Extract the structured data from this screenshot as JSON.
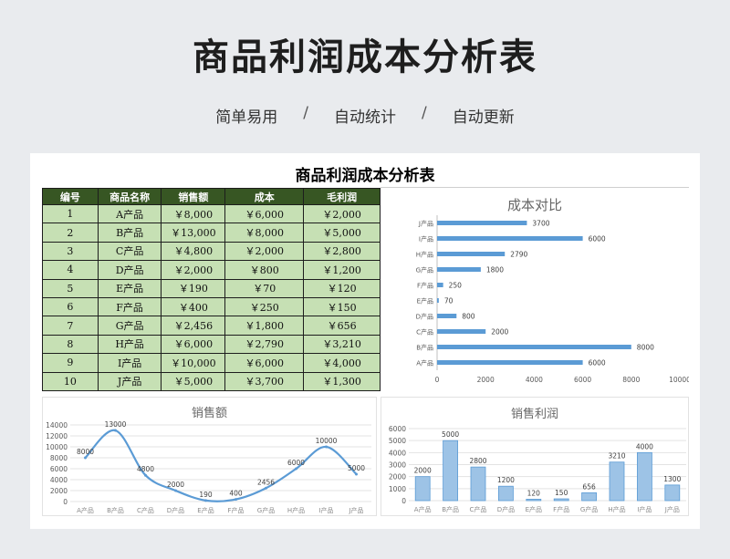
{
  "hero": {
    "title": "商品利润成本分析表",
    "subtitle": [
      "简单易用",
      "自动统计",
      "自动更新"
    ],
    "separator": "/"
  },
  "sheet": {
    "title": "商品利润成本分析表",
    "columns": [
      "编号",
      "商品名称",
      "销售额",
      "成本",
      "毛利润"
    ],
    "rows": [
      [
        "1",
        "A产品",
        "￥8,000",
        "￥6,000",
        "￥2,000"
      ],
      [
        "2",
        "B产品",
        "￥13,000",
        "￥8,000",
        "￥5,000"
      ],
      [
        "3",
        "C产品",
        "￥4,800",
        "￥2,000",
        "￥2,800"
      ],
      [
        "4",
        "D产品",
        "￥2,000",
        "￥800",
        "￥1,200"
      ],
      [
        "5",
        "E产品",
        "￥190",
        "￥70",
        "￥120"
      ],
      [
        "6",
        "F产品",
        "￥400",
        "￥250",
        "￥150"
      ],
      [
        "7",
        "G产品",
        "￥2,456",
        "￥1,800",
        "￥656"
      ],
      [
        "8",
        "H产品",
        "￥6,000",
        "￥2,790",
        "￥3,210"
      ],
      [
        "9",
        "I产品",
        "￥10,000",
        "￥6,000",
        "￥4,000"
      ],
      [
        "10",
        "J产品",
        "￥5,000",
        "￥3,700",
        "￥1,300"
      ]
    ]
  },
  "colors": {
    "header_bg": "#375623",
    "cell_bg": "#c6e0b4",
    "series": "#5b9bd5",
    "bar_fill": "#9dc3e6"
  },
  "chart_data": [
    {
      "type": "bar",
      "orientation": "horizontal",
      "title": "成本对比",
      "categories": [
        "A产品",
        "B产品",
        "C产品",
        "D产品",
        "E产品",
        "F产品",
        "G产品",
        "H产品",
        "I产品",
        "J产品"
      ],
      "values": [
        6000,
        8000,
        2000,
        800,
        70,
        250,
        1800,
        2790,
        6000,
        3700
      ],
      "xlim": [
        0,
        10000
      ],
      "xticks": [
        0,
        2000,
        4000,
        6000,
        8000,
        10000
      ],
      "grid": false
    },
    {
      "type": "line",
      "title": "销售额",
      "categories": [
        "A产品",
        "B产品",
        "C产品",
        "D产品",
        "E产品",
        "F产品",
        "G产品",
        "H产品",
        "I产品",
        "J产品"
      ],
      "values": [
        8000,
        13000,
        4800,
        2000,
        190,
        400,
        2456,
        6000,
        10000,
        5000
      ],
      "ylim": [
        0,
        14000
      ],
      "yticks": [
        0,
        2000,
        4000,
        6000,
        8000,
        10000,
        12000,
        14000
      ],
      "grid": true
    },
    {
      "type": "bar",
      "title": "销售利润",
      "categories": [
        "A产品",
        "B产品",
        "C产品",
        "D产品",
        "E产品",
        "F产品",
        "G产品",
        "H产品",
        "I产品",
        "J产品"
      ],
      "values": [
        2000,
        5000,
        2800,
        1200,
        120,
        150,
        656,
        3210,
        4000,
        1300
      ],
      "ylim": [
        0,
        6000
      ],
      "yticks": [
        0,
        1000,
        2000,
        3000,
        4000,
        5000,
        6000
      ],
      "grid": true
    }
  ]
}
